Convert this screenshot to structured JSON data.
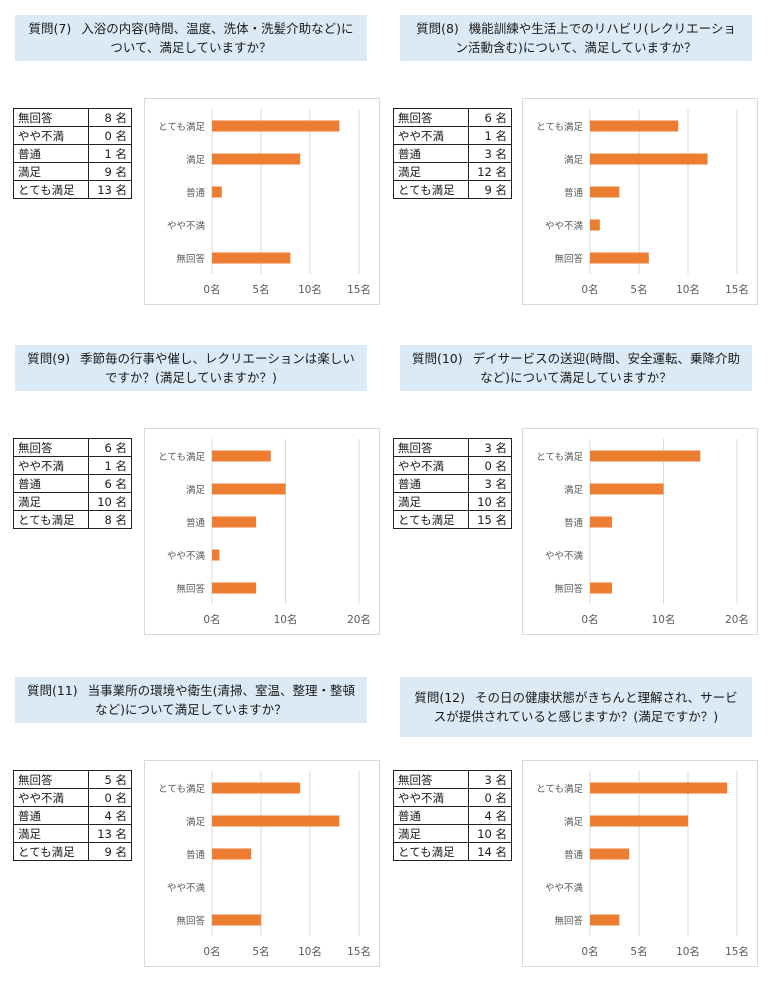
{
  "colors": {
    "bar": "#ed7d31",
    "question_bg": "#dbeaf5",
    "grid": "#d9d9d9"
  },
  "questions": [
    {
      "number": "質問(7)",
      "text": "入浴の内容(時間、温度、洗体・洗髪介助など)について、満足していますか？",
      "table": [
        {
          "label": "無回答",
          "count": "8 名"
        },
        {
          "label": "やや不満",
          "count": "0 名"
        },
        {
          "label": "普通",
          "count": "1 名"
        },
        {
          "label": "満足",
          "count": "9 名"
        },
        {
          "label": "とても満足",
          "count": "13 名"
        }
      ]
    },
    {
      "number": "質問(8)",
      "text": "機能訓練や生活上でのリハビリ(レクリエーション活動含む)について、満足していますか？",
      "table": [
        {
          "label": "無回答",
          "count": "6 名"
        },
        {
          "label": "やや不満",
          "count": "1 名"
        },
        {
          "label": "普通",
          "count": "3 名"
        },
        {
          "label": "満足",
          "count": "12 名"
        },
        {
          "label": "とても満足",
          "count": "9 名"
        }
      ]
    },
    {
      "number": "質問(9)",
      "text": "季節毎の行事や催し、レクリエーションは楽しいですか？(満足していますか？)",
      "table": [
        {
          "label": "無回答",
          "count": "6 名"
        },
        {
          "label": "やや不満",
          "count": "1 名"
        },
        {
          "label": "普通",
          "count": "6 名"
        },
        {
          "label": "満足",
          "count": "10 名"
        },
        {
          "label": "とても満足",
          "count": "8 名"
        }
      ]
    },
    {
      "number": "質問(10)",
      "text": "デイサービスの送迎(時間、安全運転、乗降介助など)について満足していますか？",
      "table": [
        {
          "label": "無回答",
          "count": "3 名"
        },
        {
          "label": "やや不満",
          "count": "0 名"
        },
        {
          "label": "普通",
          "count": "3 名"
        },
        {
          "label": "満足",
          "count": "10 名"
        },
        {
          "label": "とても満足",
          "count": "15 名"
        }
      ]
    },
    {
      "number": "質問(11)",
      "text": "当事業所の環境や衛生(清掃、室温、整理・整頓など)について満足していますか？",
      "table": [
        {
          "label": "無回答",
          "count": "5 名"
        },
        {
          "label": "やや不満",
          "count": "0 名"
        },
        {
          "label": "普通",
          "count": "4 名"
        },
        {
          "label": "満足",
          "count": "13 名"
        },
        {
          "label": "とても満足",
          "count": "9 名"
        }
      ]
    },
    {
      "number": "質問(12)",
      "text": "その日の健康状態がきちんと理解され、サービスが提供されていると感じますか？(満足ですか？)",
      "table": [
        {
          "label": "無回答",
          "count": "3 名"
        },
        {
          "label": "やや不満",
          "count": "0 名"
        },
        {
          "label": "普通",
          "count": "4 名"
        },
        {
          "label": "満足",
          "count": "10 名"
        },
        {
          "label": "とても満足",
          "count": "14 名"
        }
      ]
    }
  ],
  "chart_data": [
    {
      "type": "bar",
      "orientation": "horizontal",
      "categories": [
        "とても満足",
        "満足",
        "普通",
        "やや不満",
        "無回答"
      ],
      "values": [
        13,
        9,
        1,
        0,
        8
      ],
      "xlim": [
        0,
        15
      ],
      "xticks": [
        "0名",
        "5名",
        "10名",
        "15名"
      ],
      "grid": true
    },
    {
      "type": "bar",
      "orientation": "horizontal",
      "categories": [
        "とても満足",
        "満足",
        "普通",
        "やや不満",
        "無回答"
      ],
      "values": [
        9,
        12,
        3,
        1,
        6
      ],
      "xlim": [
        0,
        15
      ],
      "xticks": [
        "0名",
        "5名",
        "10名",
        "15名"
      ],
      "grid": true
    },
    {
      "type": "bar",
      "orientation": "horizontal",
      "categories": [
        "とても満足",
        "満足",
        "普通",
        "やや不満",
        "無回答"
      ],
      "values": [
        8,
        10,
        6,
        1,
        6
      ],
      "xlim": [
        0,
        20
      ],
      "xticks": [
        "0名",
        "10名",
        "20名"
      ],
      "grid": true
    },
    {
      "type": "bar",
      "orientation": "horizontal",
      "categories": [
        "とても満足",
        "満足",
        "普通",
        "やや不満",
        "無回答"
      ],
      "values": [
        15,
        10,
        3,
        0,
        3
      ],
      "xlim": [
        0,
        20
      ],
      "xticks": [
        "0名",
        "10名",
        "20名"
      ],
      "grid": true
    },
    {
      "type": "bar",
      "orientation": "horizontal",
      "categories": [
        "とても満足",
        "満足",
        "普通",
        "やや不満",
        "無回答"
      ],
      "values": [
        9,
        13,
        4,
        0,
        5
      ],
      "xlim": [
        0,
        15
      ],
      "xticks": [
        "0名",
        "5名",
        "10名",
        "15名"
      ],
      "grid": true
    },
    {
      "type": "bar",
      "orientation": "horizontal",
      "categories": [
        "とても満足",
        "満足",
        "普通",
        "やや不満",
        "無回答"
      ],
      "values": [
        14,
        10,
        4,
        0,
        3
      ],
      "xlim": [
        0,
        15
      ],
      "xticks": [
        "0名",
        "5名",
        "10名",
        "15名"
      ],
      "grid": true
    }
  ]
}
